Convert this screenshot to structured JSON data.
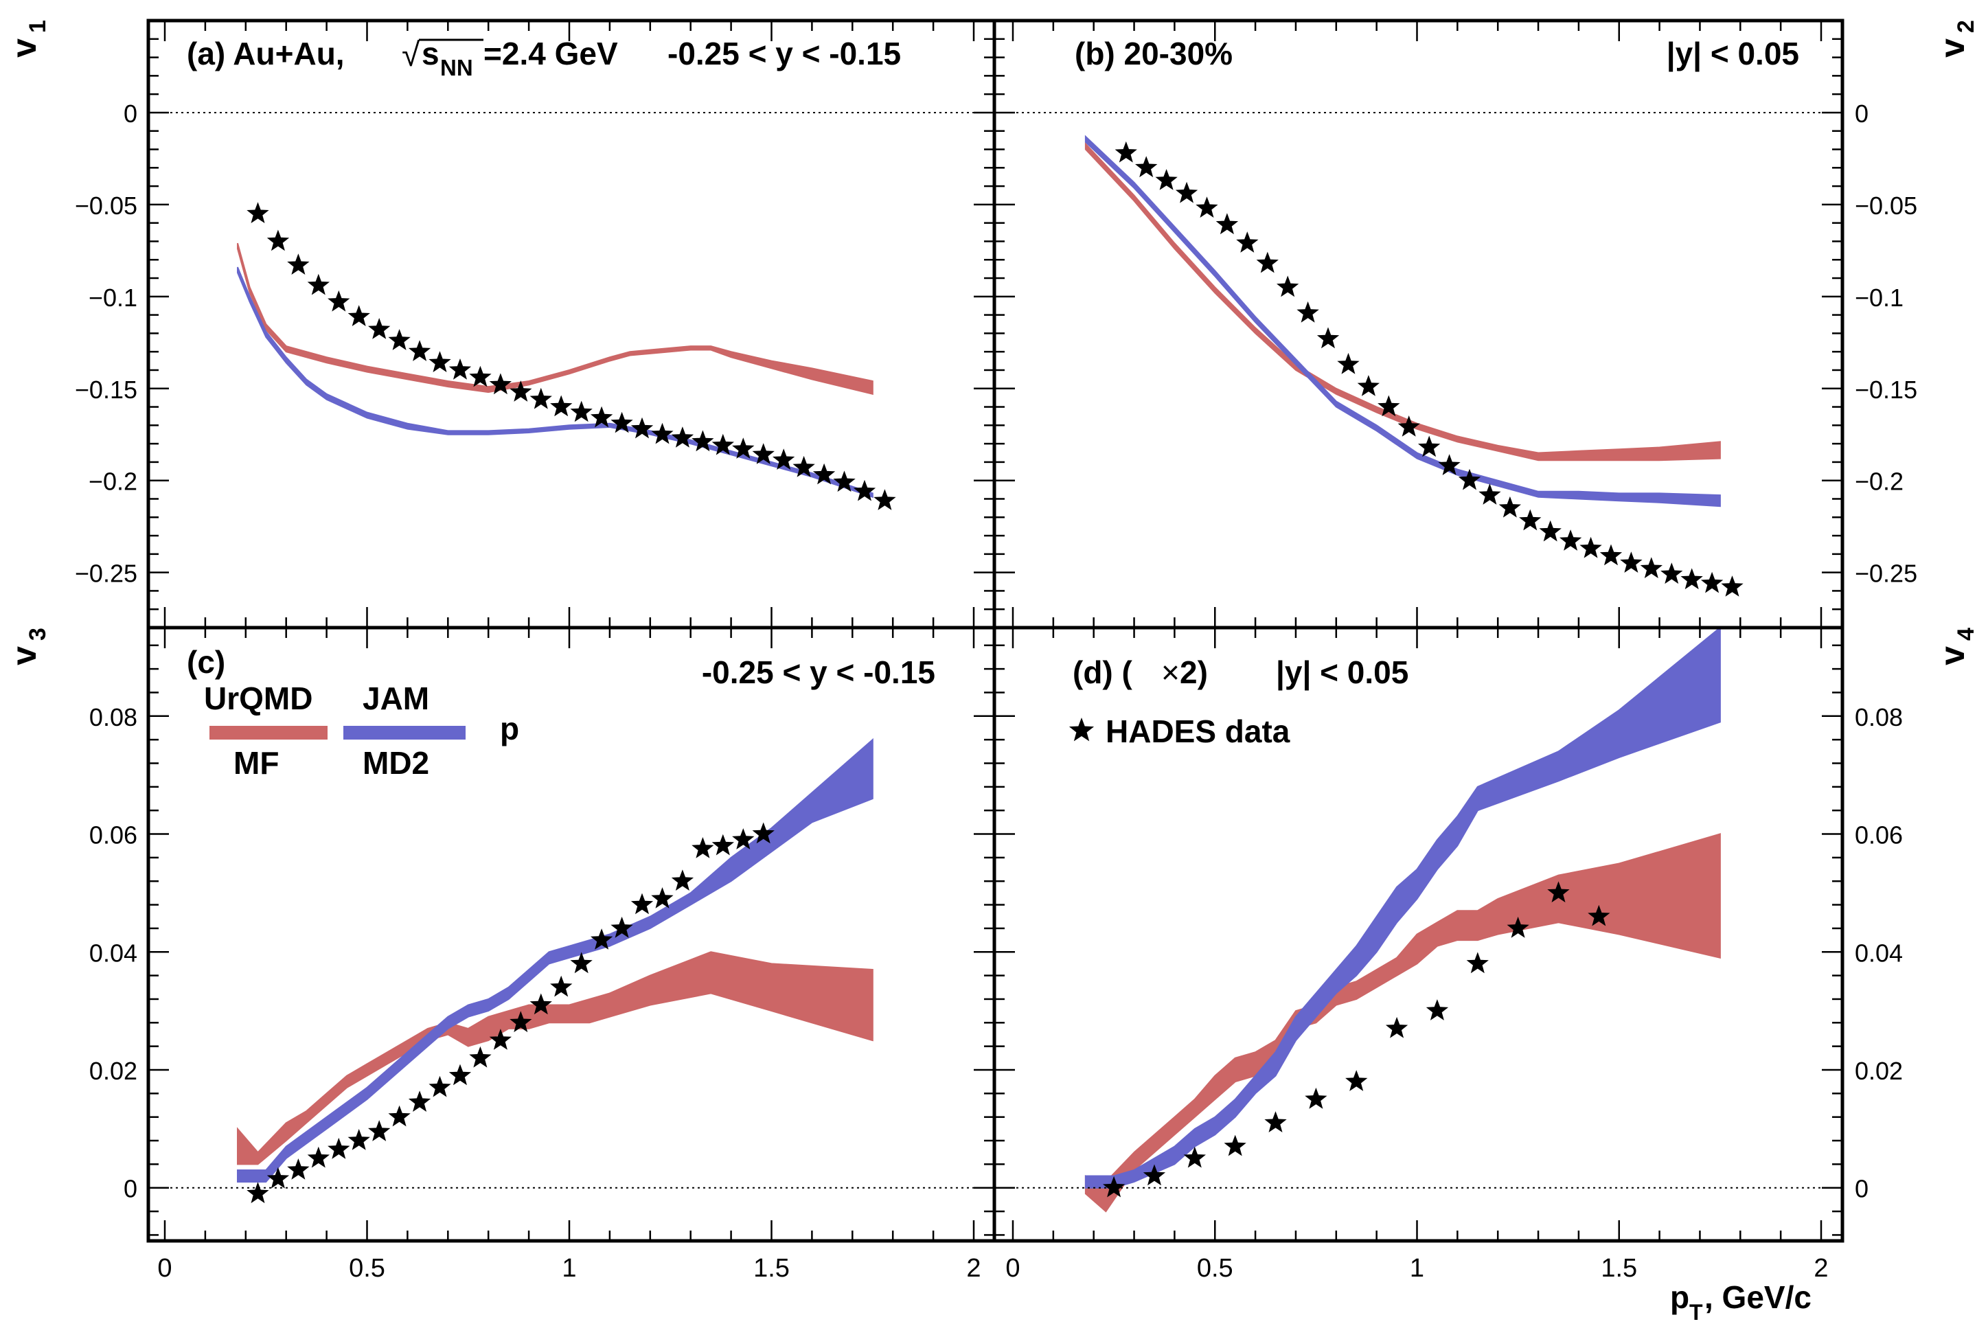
{
  "figure": {
    "xaxis_label": "p",
    "xaxis_label_sub": "T",
    "xaxis_label_rest": ", GeV/c",
    "xticks": [
      "0",
      "0.5",
      "1",
      "1.5",
      "2"
    ],
    "legend": {
      "model_row_top": [
        "UrQMD",
        "JAM"
      ],
      "model_row_bottom": [
        "MF",
        "MD2"
      ],
      "particle": "p",
      "data_label": "HADES data",
      "colors": {
        "urqmd": "#cc6666",
        "jam": "#6666cc",
        "data": "#000000"
      }
    }
  },
  "chart_data": [
    {
      "id": "a",
      "type": "line",
      "ylabel": "v",
      "ylabel_sub": "1",
      "title_parts": {
        "prefix": "(a) Au+Au,",
        "sqrt_sym": "√",
        "s": "s",
        "sub": "NN",
        "energy": "=2.4 GeV",
        "rapidity": "-0.25 < y < -0.15"
      },
      "xlim": [
        0,
        2
      ],
      "ylim": [
        -0.28,
        0.05
      ],
      "yticks": [
        0,
        -0.05,
        -0.1,
        -0.15,
        -0.2,
        -0.25
      ],
      "ytick_labels": [
        "0",
        "−0.05",
        "−0.1",
        "−0.15",
        "−0.2",
        "−0.25"
      ],
      "series": [
        {
          "name": "UrQMD MF",
          "color": "#cc6666",
          "x": [
            0.18,
            0.21,
            0.25,
            0.3,
            0.4,
            0.5,
            0.6,
            0.7,
            0.8,
            0.9,
            1.0,
            1.1,
            1.15,
            1.2,
            1.3,
            1.35,
            1.4,
            1.5,
            1.6,
            1.75
          ],
          "lower": [
            -0.074,
            -0.098,
            -0.118,
            -0.13,
            -0.136,
            -0.141,
            -0.145,
            -0.149,
            -0.152,
            -0.148,
            -0.142,
            -0.135,
            -0.132,
            -0.131,
            -0.129,
            -0.129,
            -0.133,
            -0.139,
            -0.145,
            -0.153
          ],
          "upper": [
            -0.071,
            -0.095,
            -0.115,
            -0.127,
            -0.133,
            -0.138,
            -0.142,
            -0.146,
            -0.149,
            -0.146,
            -0.14,
            -0.133,
            -0.13,
            -0.129,
            -0.127,
            -0.127,
            -0.13,
            -0.135,
            -0.139,
            -0.146
          ]
        },
        {
          "name": "JAM MD2",
          "color": "#6666cc",
          "x": [
            0.18,
            0.21,
            0.25,
            0.3,
            0.35,
            0.4,
            0.5,
            0.6,
            0.7,
            0.8,
            0.9,
            1.0,
            1.1,
            1.2,
            1.3,
            1.4,
            1.5,
            1.6,
            1.75
          ],
          "lower": [
            -0.087,
            -0.103,
            -0.122,
            -0.136,
            -0.148,
            -0.156,
            -0.166,
            -0.172,
            -0.175,
            -0.175,
            -0.174,
            -0.172,
            -0.171,
            -0.175,
            -0.18,
            -0.186,
            -0.192,
            -0.198,
            -0.209
          ],
          "upper": [
            -0.084,
            -0.1,
            -0.119,
            -0.133,
            -0.145,
            -0.153,
            -0.163,
            -0.169,
            -0.173,
            -0.173,
            -0.172,
            -0.17,
            -0.169,
            -0.173,
            -0.178,
            -0.184,
            -0.19,
            -0.196,
            -0.207
          ]
        },
        {
          "name": "HADES data",
          "color": "#000000",
          "marker": "star",
          "x": [
            0.23,
            0.28,
            0.33,
            0.38,
            0.43,
            0.48,
            0.53,
            0.58,
            0.63,
            0.68,
            0.73,
            0.78,
            0.83,
            0.88,
            0.93,
            0.98,
            1.03,
            1.08,
            1.13,
            1.18,
            1.23,
            1.28,
            1.33,
            1.38,
            1.43,
            1.48,
            1.53,
            1.58,
            1.63,
            1.68,
            1.73,
            1.78
          ],
          "y": [
            -0.055,
            -0.07,
            -0.083,
            -0.094,
            -0.103,
            -0.111,
            -0.118,
            -0.124,
            -0.13,
            -0.136,
            -0.14,
            -0.144,
            -0.148,
            -0.152,
            -0.156,
            -0.16,
            -0.163,
            -0.166,
            -0.169,
            -0.172,
            -0.175,
            -0.177,
            -0.179,
            -0.181,
            -0.183,
            -0.186,
            -0.189,
            -0.193,
            -0.197,
            -0.201,
            -0.206,
            -0.211
          ]
        }
      ]
    },
    {
      "id": "b",
      "type": "line",
      "ylabel": "v",
      "ylabel_sub": "2",
      "title_left": "(b)  20-30%",
      "title_right": "|y| < 0.05",
      "xlim": [
        0,
        2
      ],
      "ylim": [
        -0.28,
        0.05
      ],
      "yticks": [
        0,
        -0.05,
        -0.1,
        -0.15,
        -0.2,
        -0.25
      ],
      "ytick_labels": [
        "0",
        "−0.05",
        "−0.1",
        "−0.15",
        "−0.2",
        "−0.25"
      ],
      "series": [
        {
          "name": "UrQMD MF",
          "color": "#cc6666",
          "x": [
            0.18,
            0.3,
            0.4,
            0.5,
            0.6,
            0.7,
            0.8,
            0.9,
            1.0,
            1.1,
            1.2,
            1.3,
            1.4,
            1.5,
            1.6,
            1.75
          ],
          "lower": [
            -0.02,
            -0.048,
            -0.074,
            -0.098,
            -0.12,
            -0.14,
            -0.153,
            -0.163,
            -0.172,
            -0.179,
            -0.184,
            -0.189,
            -0.189,
            -0.189,
            -0.189,
            -0.188
          ],
          "upper": [
            -0.017,
            -0.045,
            -0.071,
            -0.095,
            -0.117,
            -0.137,
            -0.15,
            -0.16,
            -0.169,
            -0.176,
            -0.181,
            -0.185,
            -0.184,
            -0.183,
            -0.182,
            -0.179
          ]
        },
        {
          "name": "JAM MD2",
          "color": "#6666cc",
          "x": [
            0.18,
            0.3,
            0.4,
            0.5,
            0.6,
            0.7,
            0.8,
            0.9,
            1.0,
            1.1,
            1.2,
            1.3,
            1.4,
            1.5,
            1.6,
            1.75
          ],
          "lower": [
            -0.016,
            -0.041,
            -0.065,
            -0.089,
            -0.114,
            -0.137,
            -0.16,
            -0.173,
            -0.188,
            -0.197,
            -0.203,
            -0.209,
            -0.21,
            -0.211,
            -0.212,
            -0.214
          ],
          "upper": [
            -0.013,
            -0.038,
            -0.062,
            -0.086,
            -0.111,
            -0.134,
            -0.157,
            -0.17,
            -0.185,
            -0.194,
            -0.2,
            -0.206,
            -0.206,
            -0.207,
            -0.207,
            -0.208
          ]
        },
        {
          "name": "HADES data",
          "color": "#000000",
          "marker": "star",
          "x": [
            0.28,
            0.33,
            0.38,
            0.43,
            0.48,
            0.53,
            0.58,
            0.63,
            0.68,
            0.73,
            0.78,
            0.83,
            0.88,
            0.93,
            0.98,
            1.03,
            1.08,
            1.13,
            1.18,
            1.23,
            1.28,
            1.33,
            1.38,
            1.43,
            1.48,
            1.53,
            1.58,
            1.63,
            1.68,
            1.73,
            1.78
          ],
          "y": [
            -0.022,
            -0.03,
            -0.037,
            -0.044,
            -0.052,
            -0.061,
            -0.071,
            -0.082,
            -0.095,
            -0.109,
            -0.123,
            -0.137,
            -0.149,
            -0.16,
            -0.171,
            -0.182,
            -0.192,
            -0.2,
            -0.208,
            -0.215,
            -0.222,
            -0.228,
            -0.233,
            -0.237,
            -0.241,
            -0.245,
            -0.248,
            -0.251,
            -0.254,
            -0.256,
            -0.258
          ]
        }
      ]
    },
    {
      "id": "c",
      "type": "line",
      "ylabel": "v",
      "ylabel_sub": "3",
      "title_left": "(c)",
      "title_right": "-0.25 < y < -0.15",
      "xlim": [
        0,
        2
      ],
      "ylim": [
        -0.009,
        0.095
      ],
      "yticks": [
        0,
        0.02,
        0.04,
        0.06,
        0.08
      ],
      "ytick_labels": [
        "0",
        "0.02",
        "0.04",
        "0.06",
        "0.08"
      ],
      "series": [
        {
          "name": "UrQMD MF",
          "color": "#cc6666",
          "x": [
            0.18,
            0.23,
            0.3,
            0.35,
            0.4,
            0.45,
            0.5,
            0.55,
            0.6,
            0.65,
            0.7,
            0.75,
            0.8,
            0.85,
            0.9,
            0.95,
            1.0,
            1.05,
            1.1,
            1.2,
            1.35,
            1.5,
            1.75
          ],
          "lower": [
            0.004,
            0.004,
            0.008,
            0.011,
            0.014,
            0.017,
            0.019,
            0.021,
            0.023,
            0.025,
            0.026,
            0.024,
            0.025,
            0.027,
            0.027,
            0.028,
            0.028,
            0.028,
            0.029,
            0.031,
            0.033,
            0.03,
            0.025
          ],
          "upper": [
            0.01,
            0.006,
            0.011,
            0.013,
            0.016,
            0.019,
            0.021,
            0.023,
            0.025,
            0.027,
            0.028,
            0.027,
            0.029,
            0.03,
            0.031,
            0.031,
            0.031,
            0.032,
            0.033,
            0.036,
            0.04,
            0.038,
            0.037
          ]
        },
        {
          "name": "JAM MD2",
          "color": "#6666cc",
          "x": [
            0.18,
            0.25,
            0.3,
            0.4,
            0.5,
            0.6,
            0.7,
            0.75,
            0.8,
            0.85,
            0.9,
            0.95,
            1.0,
            1.1,
            1.2,
            1.3,
            1.4,
            1.5,
            1.6,
            1.75
          ],
          "lower": [
            0.001,
            0.001,
            0.005,
            0.01,
            0.015,
            0.021,
            0.027,
            0.029,
            0.03,
            0.032,
            0.035,
            0.038,
            0.039,
            0.041,
            0.044,
            0.048,
            0.052,
            0.057,
            0.062,
            0.066
          ],
          "upper": [
            0.003,
            0.003,
            0.007,
            0.012,
            0.017,
            0.023,
            0.029,
            0.031,
            0.032,
            0.034,
            0.037,
            0.04,
            0.041,
            0.043,
            0.046,
            0.05,
            0.056,
            0.061,
            0.067,
            0.076
          ]
        },
        {
          "name": "HADES data",
          "color": "#000000",
          "marker": "star",
          "x": [
            0.23,
            0.28,
            0.33,
            0.38,
            0.43,
            0.48,
            0.53,
            0.58,
            0.63,
            0.68,
            0.73,
            0.78,
            0.83,
            0.88,
            0.93,
            0.98,
            1.03,
            1.08,
            1.13,
            1.18,
            1.23,
            1.28,
            1.33,
            1.38,
            1.43,
            1.48
          ],
          "y": [
            -0.001,
            0.0015,
            0.003,
            0.005,
            0.0065,
            0.008,
            0.0095,
            0.012,
            0.0145,
            0.017,
            0.019,
            0.022,
            0.025,
            0.028,
            0.031,
            0.034,
            0.038,
            0.042,
            0.044,
            0.048,
            0.049,
            0.052,
            0.0575,
            0.058,
            0.059,
            0.06
          ]
        }
      ]
    },
    {
      "id": "d",
      "type": "line",
      "ylabel": "v",
      "ylabel_sub": "4",
      "title_left": "(d)  (",
      "title_times": "×",
      "title_mult": " 2)",
      "title_right": "|y| < 0.05",
      "xlim": [
        0,
        2
      ],
      "ylim": [
        -0.009,
        0.095
      ],
      "yticks": [
        0,
        0.02,
        0.04,
        0.06,
        0.08
      ],
      "ytick_labels": [
        "0",
        "0.02",
        "0.04",
        "0.06",
        "0.08"
      ],
      "series": [
        {
          "name": "UrQMD MF",
          "color": "#cc6666",
          "x": [
            0.18,
            0.23,
            0.3,
            0.4,
            0.45,
            0.5,
            0.55,
            0.6,
            0.65,
            0.7,
            0.75,
            0.8,
            0.85,
            0.9,
            0.95,
            1.0,
            1.05,
            1.1,
            1.15,
            1.2,
            1.35,
            1.5,
            1.75
          ],
          "lower": [
            -0.001,
            -0.004,
            0.003,
            0.009,
            0.012,
            0.015,
            0.018,
            0.019,
            0.021,
            0.027,
            0.028,
            0.031,
            0.032,
            0.034,
            0.036,
            0.038,
            0.041,
            0.042,
            0.042,
            0.043,
            0.045,
            0.043,
            0.039
          ],
          "upper": [
            0.002,
            0.001,
            0.006,
            0.012,
            0.015,
            0.019,
            0.022,
            0.023,
            0.025,
            0.03,
            0.031,
            0.034,
            0.035,
            0.037,
            0.039,
            0.043,
            0.045,
            0.047,
            0.047,
            0.049,
            0.053,
            0.055,
            0.06
          ]
        },
        {
          "name": "JAM MD2",
          "color": "#6666cc",
          "x": [
            0.18,
            0.25,
            0.3,
            0.4,
            0.45,
            0.5,
            0.55,
            0.6,
            0.65,
            0.7,
            0.75,
            0.8,
            0.85,
            0.9,
            0.95,
            1.0,
            1.05,
            1.1,
            1.15,
            1.35,
            1.5,
            1.75
          ],
          "lower": [
            0.0,
            0.0,
            0.001,
            0.004,
            0.007,
            0.009,
            0.012,
            0.016,
            0.019,
            0.025,
            0.029,
            0.033,
            0.036,
            0.04,
            0.045,
            0.049,
            0.054,
            0.058,
            0.064,
            0.069,
            0.073,
            0.079
          ],
          "upper": [
            0.002,
            0.002,
            0.003,
            0.007,
            0.01,
            0.012,
            0.015,
            0.019,
            0.023,
            0.029,
            0.033,
            0.037,
            0.041,
            0.046,
            0.051,
            0.054,
            0.059,
            0.063,
            0.068,
            0.074,
            0.081,
            0.095
          ]
        },
        {
          "name": "HADES data",
          "color": "#000000",
          "marker": "star",
          "x": [
            0.25,
            0.35,
            0.45,
            0.55,
            0.65,
            0.75,
            0.85,
            0.95,
            1.05,
            1.15,
            1.25,
            1.35,
            1.45
          ],
          "y": [
            0.0,
            0.002,
            0.005,
            0.007,
            0.011,
            0.015,
            0.018,
            0.027,
            0.03,
            0.038,
            0.044,
            0.05,
            0.046
          ]
        }
      ]
    }
  ]
}
